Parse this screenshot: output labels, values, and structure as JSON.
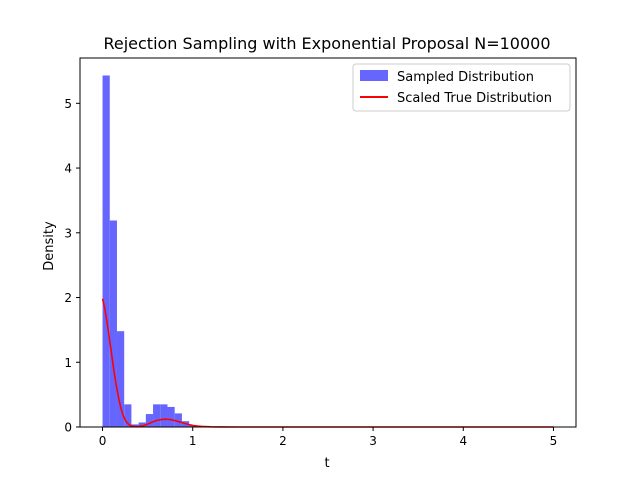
{
  "chart_data": {
    "type": "bar",
    "title": "Rejection Sampling with Exponential Proposal N=10000",
    "xlabel": "t",
    "ylabel": "Density",
    "xlim": [
      -0.25,
      5.25
    ],
    "ylim": [
      0,
      5.7
    ],
    "xticks": [
      0,
      1,
      2,
      3,
      4,
      5
    ],
    "yticks": [
      0,
      1,
      2,
      3,
      4,
      5
    ],
    "legend_position": "top-right",
    "histogram": {
      "name": "Sampled Distribution",
      "color": "#6666ff",
      "bin_width": 0.08,
      "bins_start": [
        0.0,
        0.08,
        0.16,
        0.24,
        0.32,
        0.4,
        0.48,
        0.56,
        0.64,
        0.72,
        0.8,
        0.88,
        0.96,
        1.04
      ],
      "values": [
        5.43,
        3.19,
        1.48,
        0.35,
        0.04,
        0.07,
        0.2,
        0.35,
        0.35,
        0.31,
        0.21,
        0.09,
        0.03,
        0.01
      ]
    },
    "line": {
      "name": "Scaled True Distribution",
      "color": "#ff0000",
      "x": [
        0.0,
        0.025,
        0.05,
        0.075,
        0.1,
        0.125,
        0.15,
        0.175,
        0.2,
        0.225,
        0.25,
        0.275,
        0.3,
        0.325,
        0.35,
        0.375,
        0.4,
        0.45,
        0.5,
        0.55,
        0.6,
        0.65,
        0.7,
        0.75,
        0.8,
        0.85,
        0.9,
        0.95,
        1.0,
        1.05,
        1.1,
        1.2,
        1.3,
        1.5,
        2.0,
        3.0,
        4.0,
        5.0
      ],
      "y": [
        1.98,
        1.83,
        1.62,
        1.38,
        1.13,
        0.88,
        0.66,
        0.47,
        0.31,
        0.19,
        0.11,
        0.06,
        0.03,
        0.015,
        0.008,
        0.006,
        0.007,
        0.02,
        0.045,
        0.075,
        0.1,
        0.115,
        0.12,
        0.115,
        0.1,
        0.08,
        0.06,
        0.04,
        0.025,
        0.015,
        0.008,
        0.003,
        0.001,
        0.0,
        0.0,
        0.0,
        0.0,
        0.0
      ]
    }
  }
}
